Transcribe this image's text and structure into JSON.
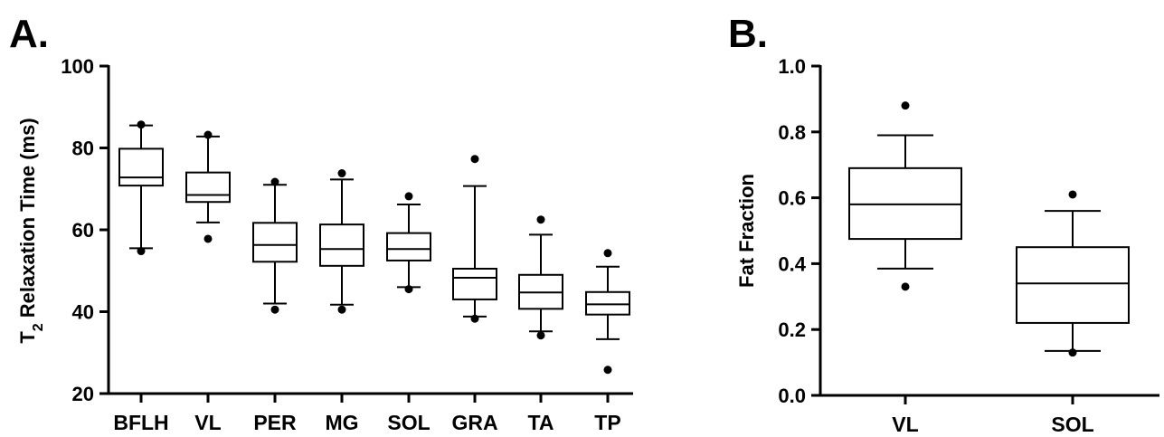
{
  "chart_data": [
    {
      "panel": "A.",
      "type": "box",
      "ylabel": {
        "prefix": "T",
        "subscript": "2",
        "suffix": " Relaxation Time (ms)"
      },
      "ylim": [
        20,
        100
      ],
      "yticks": [
        20,
        40,
        60,
        80,
        100
      ],
      "categories": [
        "BFLH",
        "VL",
        "PER",
        "MG",
        "SOL",
        "GRA",
        "TA",
        "TP"
      ],
      "boxes": [
        {
          "category": "BFLH",
          "whisker_low": 55.5,
          "q1": 70.8,
          "median": 72.8,
          "q3": 79.8,
          "whisker_high": 85.5,
          "outliers": [
            54.8,
            85.7
          ]
        },
        {
          "category": "VL",
          "whisker_low": 61.8,
          "q1": 66.8,
          "median": 68.5,
          "q3": 74.0,
          "whisker_high": 82.8,
          "outliers": [
            57.8,
            83.2
          ]
        },
        {
          "category": "PER",
          "whisker_low": 42.0,
          "q1": 52.2,
          "median": 56.3,
          "q3": 61.7,
          "whisker_high": 71.0,
          "outliers": [
            40.5,
            71.7
          ]
        },
        {
          "category": "MG",
          "whisker_low": 41.7,
          "q1": 51.2,
          "median": 55.3,
          "q3": 61.3,
          "whisker_high": 72.3,
          "outliers": [
            40.5,
            73.8
          ]
        },
        {
          "category": "SOL",
          "whisker_low": 46.0,
          "q1": 52.5,
          "median": 55.3,
          "q3": 59.2,
          "whisker_high": 66.2,
          "outliers": [
            45.5,
            68.2
          ]
        },
        {
          "category": "GRA",
          "whisker_low": 38.8,
          "q1": 43.0,
          "median": 48.3,
          "q3": 50.5,
          "whisker_high": 70.7,
          "outliers": [
            38.3,
            77.3
          ]
        },
        {
          "category": "TA",
          "whisker_low": 35.2,
          "q1": 40.7,
          "median": 44.7,
          "q3": 49.0,
          "whisker_high": 58.8,
          "outliers": [
            34.2,
            62.5
          ]
        },
        {
          "category": "TP",
          "whisker_low": 33.3,
          "q1": 39.3,
          "median": 41.8,
          "q3": 44.8,
          "whisker_high": 51.0,
          "outliers": [
            25.8,
            54.3
          ]
        }
      ]
    },
    {
      "panel": "B.",
      "type": "box",
      "ylabel": "Fat Fraction",
      "ylim": [
        0.0,
        1.0
      ],
      "yticks": [
        "0.0",
        "0.2",
        "0.4",
        "0.6",
        "0.8",
        "1.0"
      ],
      "categories": [
        "VL",
        "SOL"
      ],
      "boxes": [
        {
          "category": "VL",
          "whisker_low": 0.385,
          "q1": 0.475,
          "median": 0.58,
          "q3": 0.69,
          "whisker_high": 0.79,
          "outliers": [
            0.33,
            0.88
          ]
        },
        {
          "category": "SOL",
          "whisker_low": 0.135,
          "q1": 0.22,
          "median": 0.34,
          "q3": 0.45,
          "whisker_high": 0.56,
          "outliers": [
            0.13,
            0.61
          ]
        }
      ]
    }
  ]
}
